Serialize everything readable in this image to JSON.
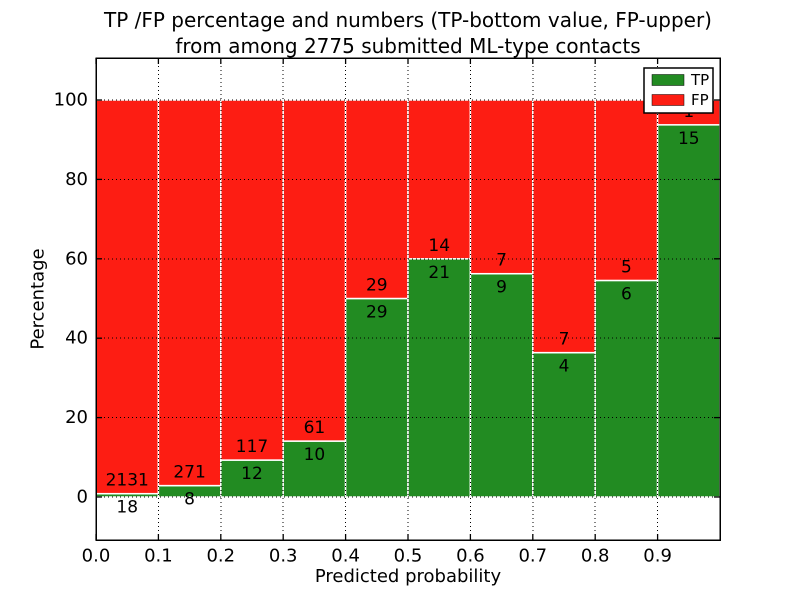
{
  "chart_data": {
    "type": "bar",
    "subtype": "stacked-percentage-histogram",
    "title_line1": "TP /FP percentage and numbers (TP-bottom value, FP-upper)",
    "title_line2": "from among 2775 submitted ML-type contacts",
    "xlabel": "Predicted probability",
    "ylabel": "Percentage",
    "total_contacts": 2775,
    "bin_edges": [
      0.0,
      0.1,
      0.2,
      0.3,
      0.4,
      0.5,
      0.6,
      0.7,
      0.8,
      0.9,
      1.0
    ],
    "categories": [
      "0.0-0.1",
      "0.1-0.2",
      "0.2-0.3",
      "0.3-0.4",
      "0.4-0.5",
      "0.5-0.6",
      "0.6-0.7",
      "0.7-0.8",
      "0.8-0.9",
      "0.9-1.0"
    ],
    "series": [
      {
        "name": "TP",
        "color": "#228b22",
        "counts": [
          18,
          8,
          12,
          10,
          29,
          21,
          9,
          4,
          6,
          15
        ],
        "percent": [
          0.84,
          2.87,
          9.3,
          14.08,
          50.0,
          60.0,
          56.25,
          36.36,
          54.55,
          93.75
        ]
      },
      {
        "name": "FP",
        "color": "#fd1d13",
        "counts": [
          2131,
          271,
          117,
          61,
          29,
          14,
          7,
          7,
          5,
          1
        ],
        "percent": [
          99.16,
          97.13,
          90.7,
          85.92,
          50.0,
          40.0,
          43.75,
          63.64,
          45.45,
          6.25
        ]
      }
    ],
    "x_tick_labels": [
      "0.0",
      "0.1",
      "0.2",
      "0.3",
      "0.4",
      "0.5",
      "0.6",
      "0.7",
      "0.8",
      "0.9"
    ],
    "x_tick_values": [
      0.0,
      0.1,
      0.2,
      0.3,
      0.4,
      0.5,
      0.6,
      0.7,
      0.8,
      0.9
    ],
    "y_tick_labels": [
      "0",
      "20",
      "40",
      "60",
      "80",
      "100"
    ],
    "y_tick_values": [
      0,
      20,
      40,
      60,
      80,
      100
    ],
    "xlim": [
      0.0,
      1.0
    ],
    "ylim": [
      -11,
      110.6
    ],
    "grid": {
      "on": true,
      "style": "dotted",
      "color": "#000000"
    },
    "bar_edge_color": "#ffffff",
    "background_color": "#ffffff",
    "legend": {
      "location": "upper right",
      "entries": [
        {
          "label": "TP",
          "color": "#228b22"
        },
        {
          "label": "FP",
          "color": "#fd1d13"
        }
      ]
    }
  }
}
